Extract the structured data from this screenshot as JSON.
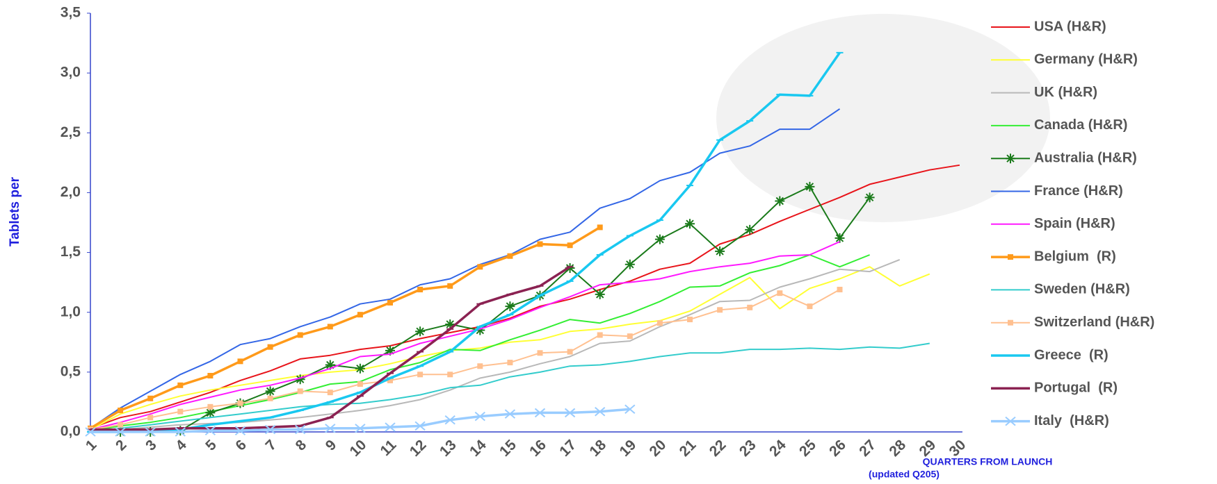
{
  "chart_data": {
    "type": "line",
    "y_label": "Tablets per",
    "x_label": [
      "QUARTERS FROM LAUNCH",
      "(updated Q205)"
    ],
    "categories": [
      "1",
      "2",
      "3",
      "4",
      "5",
      "6",
      "7",
      "8",
      "9",
      "10",
      "11",
      "12",
      "13",
      "14",
      "15",
      "16",
      "17",
      "18",
      "19",
      "20",
      "21",
      "22",
      "23",
      "24",
      "25",
      "26",
      "27",
      "28",
      "29",
      "30"
    ],
    "ylim": [
      0,
      3.5
    ],
    "yticks": [
      {
        "value": 0,
        "label": "0,0"
      },
      {
        "value": 0.5,
        "label": "0,5"
      },
      {
        "value": 1,
        "label": "1,0"
      },
      {
        "value": 1.5,
        "label": "1,5"
      },
      {
        "value": 2,
        "label": "2,0"
      },
      {
        "value": 2.5,
        "label": "2,5"
      },
      {
        "value": 3,
        "label": "3,0"
      },
      {
        "value": 3.5,
        "label": "3,5"
      }
    ],
    "grid": false,
    "legend": "right",
    "series": [
      {
        "name": "USA (H&R)",
        "color": "#e8141a",
        "marker": "none",
        "values": [
          0.03,
          0.12,
          0.17,
          0.25,
          0.33,
          0.43,
          0.51,
          0.61,
          0.64,
          0.69,
          0.72,
          0.78,
          0.83,
          0.88,
          0.95,
          1.05,
          1.11,
          1.19,
          1.26,
          1.36,
          1.41,
          1.57,
          1.65,
          1.76,
          1.86,
          1.96,
          2.07,
          2.13,
          2.19,
          2.23
        ]
      },
      {
        "name": "Germany (H&R)",
        "color": "#ffff33",
        "marker": "none",
        "values": [
          0.02,
          0.15,
          0.23,
          0.3,
          0.35,
          0.39,
          0.43,
          0.47,
          0.5,
          0.52,
          0.57,
          0.63,
          0.68,
          0.7,
          0.75,
          0.77,
          0.84,
          0.86,
          0.9,
          0.93,
          1.01,
          1.15,
          1.29,
          1.03,
          1.2,
          1.28,
          1.38,
          1.22,
          1.32,
          null
        ]
      },
      {
        "name": "UK (H&R)",
        "color": "#b8b8b8",
        "marker": "none",
        "values": [
          0.0,
          0.02,
          0.04,
          0.06,
          0.07,
          0.08,
          0.1,
          0.12,
          0.15,
          0.18,
          0.22,
          0.27,
          0.35,
          0.45,
          0.5,
          0.57,
          0.63,
          0.74,
          0.76,
          0.88,
          0.98,
          1.09,
          1.1,
          1.21,
          1.28,
          1.36,
          1.34,
          1.44,
          null,
          null
        ]
      },
      {
        "name": "Canada (H&R)",
        "color": "#33ee33",
        "marker": "none",
        "values": [
          0.01,
          0.05,
          0.08,
          0.12,
          0.17,
          0.22,
          0.27,
          0.33,
          0.4,
          0.42,
          0.52,
          0.58,
          0.69,
          0.68,
          0.77,
          0.85,
          0.94,
          0.91,
          0.99,
          1.09,
          1.21,
          1.22,
          1.33,
          1.39,
          1.48,
          1.38,
          1.48,
          null,
          null,
          null
        ]
      },
      {
        "name": "Australia (H&R)",
        "color": "#1a7a1a",
        "marker": "star",
        "values": [
          null,
          0.0,
          0.0,
          0.01,
          0.16,
          0.24,
          0.34,
          0.44,
          0.56,
          0.53,
          0.68,
          0.84,
          0.9,
          0.85,
          1.05,
          1.14,
          1.37,
          1.15,
          1.4,
          1.61,
          1.74,
          1.51,
          1.69,
          1.93,
          2.05,
          1.62,
          1.96,
          null,
          null,
          null
        ]
      },
      {
        "name": "France (H&R)",
        "color": "#3366e6",
        "marker": "none",
        "values": [
          0.03,
          0.2,
          0.34,
          0.48,
          0.59,
          0.73,
          0.78,
          0.88,
          0.96,
          1.07,
          1.11,
          1.23,
          1.28,
          1.4,
          1.48,
          1.61,
          1.67,
          1.87,
          1.95,
          2.1,
          2.17,
          2.33,
          2.39,
          2.53,
          2.53,
          2.7,
          null,
          null,
          null,
          null
        ]
      },
      {
        "name": "Spain (H&R)",
        "color": "#ff19ff",
        "marker": "none",
        "values": [
          0.02,
          0.08,
          0.15,
          0.23,
          0.29,
          0.35,
          0.39,
          0.45,
          0.53,
          0.63,
          0.65,
          0.74,
          0.8,
          0.86,
          0.94,
          1.04,
          1.13,
          1.23,
          1.25,
          1.28,
          1.34,
          1.38,
          1.41,
          1.47,
          1.48,
          1.59,
          null,
          null,
          null,
          null
        ]
      },
      {
        "name": "Belgium  (R)",
        "color": "#ff9a1a",
        "marker": "square",
        "values": [
          0.03,
          0.18,
          0.28,
          0.39,
          0.47,
          0.59,
          0.71,
          0.81,
          0.88,
          0.98,
          1.08,
          1.19,
          1.22,
          1.38,
          1.47,
          1.57,
          1.56,
          1.71,
          null,
          null,
          null,
          null,
          null,
          null,
          null,
          null,
          null,
          null,
          null,
          null
        ]
      },
      {
        "name": "Sweden (H&R)",
        "color": "#33cccc",
        "marker": "none",
        "values": [
          0.0,
          0.03,
          0.06,
          0.09,
          0.12,
          0.15,
          0.18,
          0.21,
          0.23,
          0.24,
          0.27,
          0.31,
          0.37,
          0.39,
          0.46,
          0.5,
          0.55,
          0.56,
          0.59,
          0.63,
          0.66,
          0.66,
          0.69,
          0.69,
          0.7,
          0.69,
          0.71,
          0.7,
          0.74,
          null
        ]
      },
      {
        "name": "Switzerland (H&R)",
        "color": "#ffc090",
        "marker": "square",
        "values": [
          0.02,
          0.06,
          0.12,
          0.17,
          0.21,
          0.24,
          0.28,
          0.34,
          0.33,
          0.4,
          0.43,
          0.48,
          0.48,
          0.55,
          0.58,
          0.66,
          0.67,
          0.81,
          0.8,
          0.91,
          0.94,
          1.02,
          1.04,
          1.16,
          1.05,
          1.19,
          null,
          null,
          null,
          null
        ]
      },
      {
        "name": "Greece  (R)",
        "color": "#19c8f0",
        "marker": "dash",
        "values": [
          0.0,
          0.0,
          0.01,
          0.02,
          0.06,
          0.09,
          0.12,
          0.18,
          0.25,
          0.33,
          0.45,
          0.55,
          0.67,
          0.88,
          0.98,
          1.14,
          1.26,
          1.48,
          1.64,
          1.77,
          2.06,
          2.44,
          2.6,
          2.82,
          2.81,
          3.17,
          null,
          null,
          null,
          null
        ]
      },
      {
        "name": "Portugal  (R)",
        "color": "#8b2252",
        "marker": "dash",
        "values": [
          0.02,
          0.02,
          0.02,
          0.03,
          0.03,
          0.03,
          0.04,
          0.05,
          0.12,
          0.3,
          0.49,
          0.67,
          0.86,
          1.07,
          1.15,
          1.22,
          1.38,
          null,
          null,
          null,
          null,
          null,
          null,
          null,
          null,
          null,
          null,
          null,
          null,
          null
        ]
      },
      {
        "name": "Italy  (H&R)",
        "color": "#99ccff",
        "marker": "x",
        "values": [
          0.0,
          0.0,
          0.0,
          0.0,
          0.01,
          0.01,
          0.02,
          0.02,
          0.03,
          0.03,
          0.04,
          0.05,
          0.1,
          0.13,
          0.15,
          0.16,
          0.16,
          0.17,
          0.19,
          null,
          null,
          null,
          null,
          null,
          null,
          null,
          null,
          null,
          null,
          null
        ]
      }
    ]
  }
}
